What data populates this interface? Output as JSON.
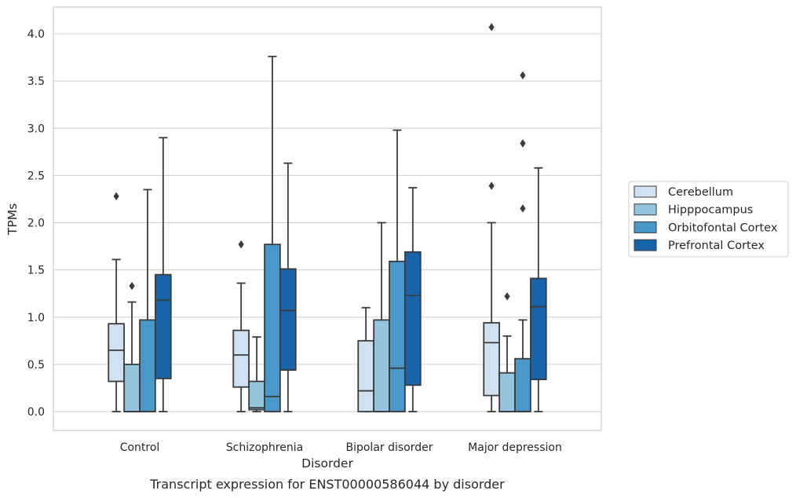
{
  "caption": "Transcript expression for ENST00000586044 by disorder",
  "chart_data": {
    "type": "box",
    "xlabel": "Disorder",
    "ylabel": "TPMs",
    "ylim": [
      -0.2,
      4.28
    ],
    "yticks": [
      0.0,
      0.5,
      1.0,
      1.5,
      2.0,
      2.5,
      3.0,
      3.5,
      4.0
    ],
    "ytick_labels": [
      "0.0",
      "0.5",
      "1.0",
      "1.5",
      "2.0",
      "2.5",
      "3.0",
      "3.5",
      "4.0"
    ],
    "grid": "horizontal",
    "legend_position": "right",
    "categories": [
      "Control",
      "Schizophrenia",
      "Bipolar disorder",
      "Major depression"
    ],
    "series": [
      {
        "name": "Cerebellum",
        "color": "#d0e1f2",
        "boxes": [
          {
            "whislo": 0.0,
            "q1": 0.32,
            "med": 0.65,
            "q3": 0.93,
            "whishi": 1.61,
            "fliers": [
              2.28
            ]
          },
          {
            "whislo": 0.0,
            "q1": 0.26,
            "med": 0.6,
            "q3": 0.86,
            "whishi": 1.36,
            "fliers": [
              1.77
            ]
          },
          {
            "whislo": 0.0,
            "q1": 0.0,
            "med": 0.22,
            "q3": 0.75,
            "whishi": 1.1,
            "fliers": []
          },
          {
            "whislo": 0.0,
            "q1": 0.17,
            "med": 0.73,
            "q3": 0.94,
            "whishi": 2.0,
            "fliers": [
              2.39,
              4.07
            ]
          }
        ]
      },
      {
        "name": "Hipppocampus",
        "color": "#94c4df",
        "boxes": [
          {
            "whislo": 0.0,
            "q1": 0.0,
            "med": 0.0,
            "q3": 0.5,
            "whishi": 1.16,
            "fliers": [
              1.33
            ]
          },
          {
            "whislo": 0.0,
            "q1": 0.02,
            "med": 0.04,
            "q3": 0.32,
            "whishi": 0.79,
            "fliers": []
          },
          {
            "whislo": 0.0,
            "q1": 0.0,
            "med": 0.0,
            "q3": 0.97,
            "whishi": 2.0,
            "fliers": []
          },
          {
            "whislo": 0.0,
            "q1": 0.0,
            "med": 0.0,
            "q3": 0.41,
            "whishi": 0.8,
            "fliers": [
              1.22
            ]
          }
        ]
      },
      {
        "name": "Orbitofontal Cortex",
        "color": "#4a98c9",
        "boxes": [
          {
            "whislo": 0.0,
            "q1": 0.0,
            "med": 0.0,
            "q3": 0.97,
            "whishi": 2.35,
            "fliers": []
          },
          {
            "whislo": 0.0,
            "q1": 0.0,
            "med": 0.16,
            "q3": 1.77,
            "whishi": 3.76,
            "fliers": []
          },
          {
            "whislo": 0.0,
            "q1": 0.0,
            "med": 0.46,
            "q3": 1.59,
            "whishi": 2.98,
            "fliers": []
          },
          {
            "whislo": 0.0,
            "q1": 0.0,
            "med": 0.0,
            "q3": 0.56,
            "whishi": 0.97,
            "fliers": [
              2.15,
              2.84,
              3.56
            ]
          }
        ]
      },
      {
        "name": "Prefrontal Cortex",
        "color": "#1764ab",
        "boxes": [
          {
            "whislo": 0.0,
            "q1": 0.35,
            "med": 1.18,
            "q3": 1.45,
            "whishi": 2.9,
            "fliers": []
          },
          {
            "whislo": 0.0,
            "q1": 0.44,
            "med": 1.07,
            "q3": 1.51,
            "whishi": 2.63,
            "fliers": []
          },
          {
            "whislo": 0.0,
            "q1": 0.28,
            "med": 1.23,
            "q3": 1.69,
            "whishi": 2.37,
            "fliers": []
          },
          {
            "whislo": 0.0,
            "q1": 0.34,
            "med": 1.11,
            "q3": 1.41,
            "whishi": 2.58,
            "fliers": []
          }
        ]
      }
    ]
  }
}
